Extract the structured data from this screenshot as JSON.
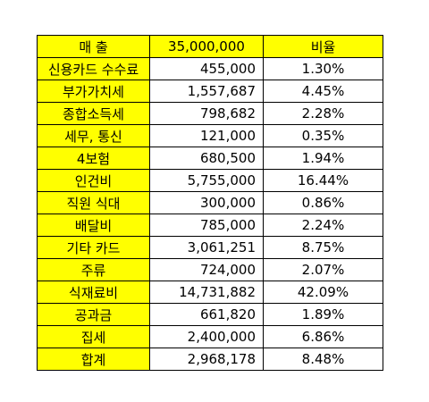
{
  "header": {
    "label": "매 출",
    "amount": "35,000,000",
    "ratio": "비율"
  },
  "rows": [
    {
      "label": "신용카드 수수료",
      "amount": "455,000",
      "ratio": "1.30%"
    },
    {
      "label": "부가가치세",
      "amount": "1,557,687",
      "ratio": "4.45%"
    },
    {
      "label": "종합소득세",
      "amount": "798,682",
      "ratio": "2.28%"
    },
    {
      "label": "세무, 통신",
      "amount": "121,000",
      "ratio": "0.35%"
    },
    {
      "label": "4보험",
      "amount": "680,500",
      "ratio": "1.94%"
    },
    {
      "label": "인건비",
      "amount": "5,755,000",
      "ratio": "16.44%"
    },
    {
      "label": "직원 식대",
      "amount": "300,000",
      "ratio": "0.86%"
    },
    {
      "label": "배달비",
      "amount": "785,000",
      "ratio": "2.24%"
    },
    {
      "label": "기타 카드",
      "amount": "3,061,251",
      "ratio": "8.75%"
    },
    {
      "label": "주류",
      "amount": "724,000",
      "ratio": "2.07%"
    },
    {
      "label": "식재료비",
      "amount": "14,731,882",
      "ratio": "42.09%"
    },
    {
      "label": "공과금",
      "amount": "661,820",
      "ratio": "1.89%"
    },
    {
      "label": "집세",
      "amount": "2,400,000",
      "ratio": "6.86%"
    },
    {
      "label": "합계",
      "amount": "2,968,178",
      "ratio": "8.48%"
    }
  ],
  "colors": {
    "highlight": "#ffff00",
    "border": "#000000",
    "text": "#000000"
  }
}
